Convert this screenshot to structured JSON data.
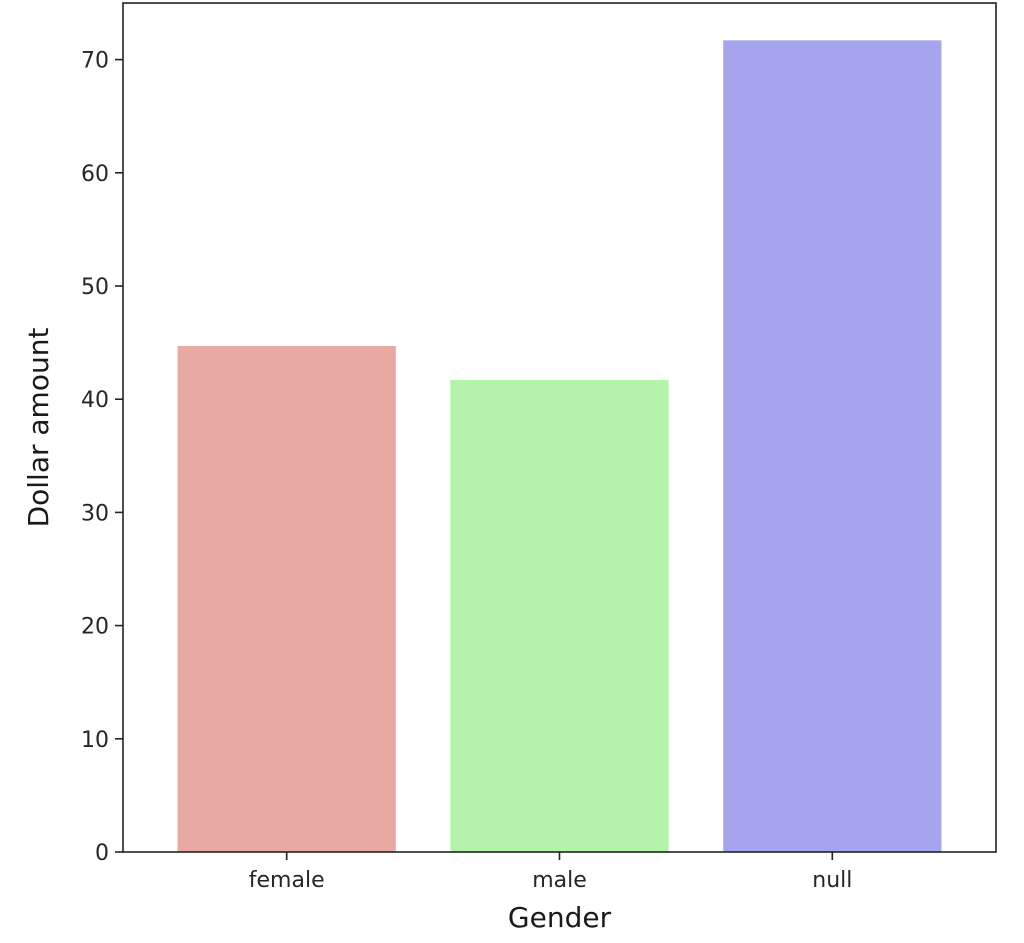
{
  "chart_data": {
    "type": "bar",
    "title": "",
    "xlabel": "Gender",
    "ylabel": "Dollar amount",
    "categories": [
      "female",
      "male",
      "null"
    ],
    "values": [
      44.7,
      41.7,
      71.7
    ],
    "colors": [
      "#e8a9a3",
      "#b5f2ac",
      "#a5a5ee"
    ],
    "ylim": [
      0,
      75
    ],
    "yticks": [
      0,
      10,
      20,
      30,
      40,
      50,
      60,
      70
    ],
    "ytick_labels": [
      "0",
      "10",
      "20",
      "30",
      "40",
      "50",
      "60",
      "70"
    ],
    "grid": false,
    "legend": "none"
  }
}
